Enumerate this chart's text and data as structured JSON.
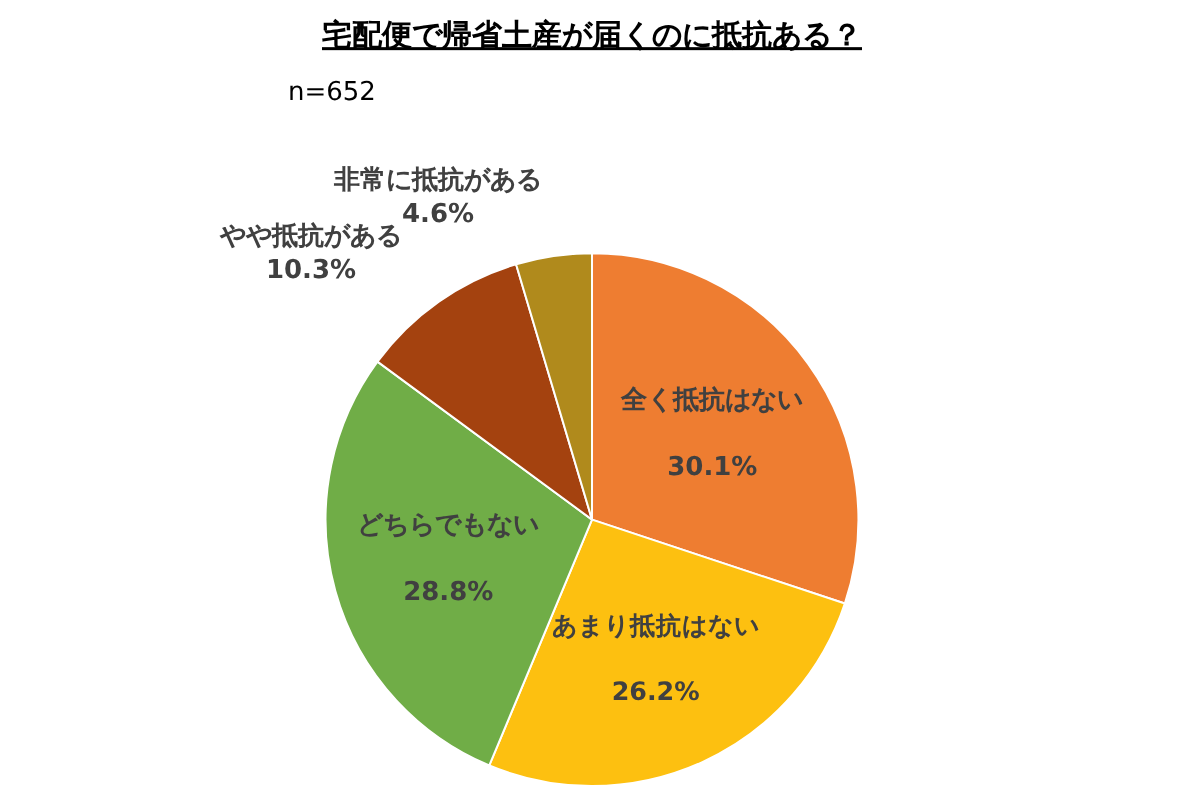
{
  "chart_data": {
    "type": "pie",
    "title": "宅配便で帰省土産が届くのに抵抗ある？",
    "subtitle": "n=652",
    "categories": [
      "全く抵抗はない",
      "あまり抵抗はない",
      "どちらでもない",
      "やや抵抗がある",
      "非常に抵抗がある"
    ],
    "values": [
      30.1,
      26.2,
      28.8,
      10.3,
      4.6
    ],
    "colors": [
      "#ee7d31",
      "#fdc010",
      "#70ad47",
      "#a4420f",
      "#b08a1c"
    ],
    "value_labels": [
      "30.1%",
      "26.2%",
      "28.8%",
      "10.3%",
      "4.6%"
    ],
    "data_labels": true,
    "legend": false
  }
}
